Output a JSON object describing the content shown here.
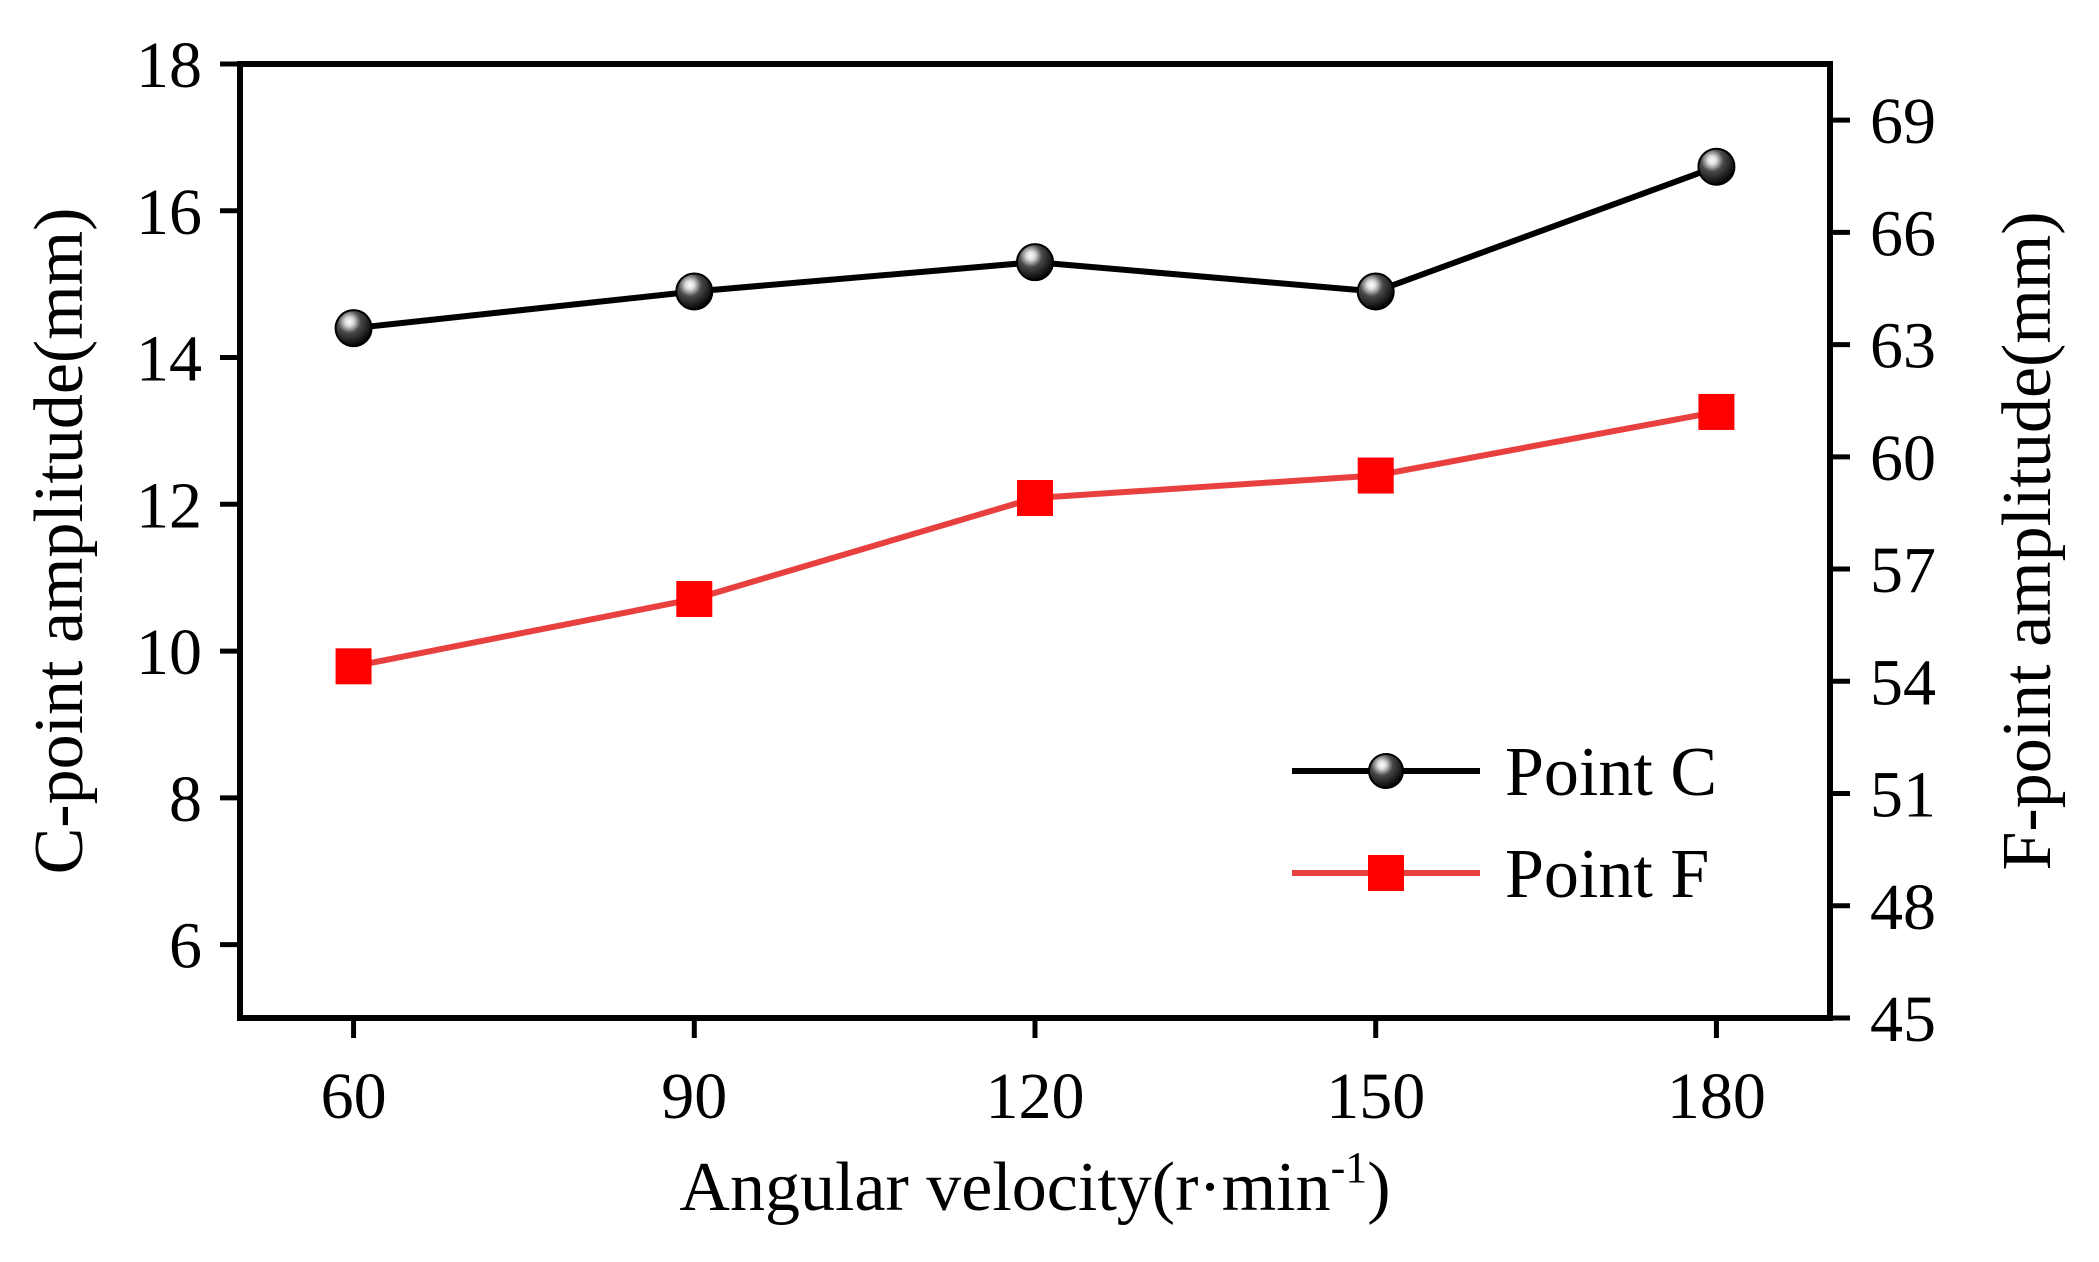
{
  "chart_data": {
    "type": "line",
    "x": [
      60,
      90,
      120,
      150,
      180
    ],
    "xlabel": "Angular velocity(r·min",
    "xlabel_superscript": "-1",
    "xlabel_suffix": ")",
    "xlim": [
      50,
      190
    ],
    "xticks": [
      "60",
      "90",
      "120",
      "150",
      "180"
    ],
    "ylabel_left": "C-point amplitude(mm)",
    "ylim_left": [
      5,
      18
    ],
    "yticks_left": [
      "6",
      "8",
      "10",
      "12",
      "14",
      "16",
      "18"
    ],
    "ylabel_right": "F-point amplitude(mm)",
    "ylim_right": [
      45,
      70.5
    ],
    "yticks_right": [
      "45",
      "48",
      "51",
      "54",
      "57",
      "60",
      "63",
      "66",
      "69"
    ],
    "grid": false,
    "legend_position": "lower-right",
    "series": [
      {
        "name": "Point C",
        "axis": "left",
        "color": "#000000",
        "marker": "sphere",
        "values": [
          14.4,
          14.9,
          15.3,
          14.9,
          16.6
        ]
      },
      {
        "name": "Point F",
        "axis": "right",
        "color": "#e8403f",
        "marker": "square",
        "values": [
          54.4,
          56.2,
          58.9,
          59.5,
          61.2
        ]
      }
    ]
  }
}
